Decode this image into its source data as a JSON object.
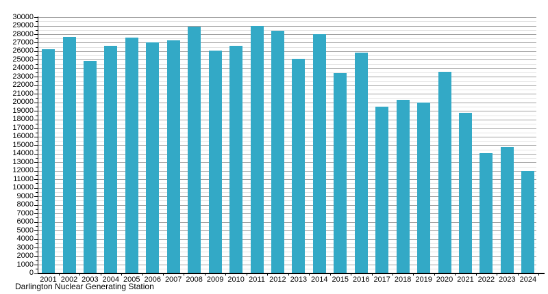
{
  "chart_data": {
    "type": "bar",
    "title": "",
    "caption": "Darlington Nuclear Generating Station",
    "xlabel": "",
    "ylabel": "",
    "categories": [
      "2001",
      "2002",
      "2003",
      "2004",
      "2005",
      "2006",
      "2007",
      "2008",
      "2009",
      "2010",
      "2011",
      "2012",
      "2013",
      "2014",
      "2015",
      "2016",
      "2017",
      "2018",
      "2019",
      "2020",
      "2021",
      "2022",
      "2023",
      "2024"
    ],
    "values": [
      26200,
      27700,
      24900,
      26600,
      27600,
      27000,
      27250,
      28850,
      26100,
      26600,
      28950,
      28400,
      25100,
      28000,
      23400,
      25800,
      19500,
      20300,
      20000,
      23600,
      18800,
      14100,
      14800,
      12000
    ],
    "ylim": [
      0,
      30000
    ],
    "y_major_step": 1000,
    "y_minor_step": 500,
    "y_tick_labels": [
      "0",
      "1000",
      "2000",
      "3000",
      "4000",
      "5000",
      "6000",
      "7000",
      "8000",
      "9000",
      "10000",
      "11000",
      "12000",
      "13000",
      "14000",
      "15000",
      "16000",
      "17000",
      "18000",
      "19000",
      "20000",
      "21000",
      "22000",
      "23000",
      "24000",
      "25000",
      "26000",
      "27000",
      "28000",
      "29000",
      "30000"
    ],
    "grid": "horizontal major+minor",
    "legend": "none",
    "colors": {
      "bar": "#33a9c6",
      "axis": "#000000",
      "major_grid": "#9e9e9e",
      "minor_grid": "#e2e2e2",
      "text": "#000000",
      "background": "#ffffff"
    }
  }
}
